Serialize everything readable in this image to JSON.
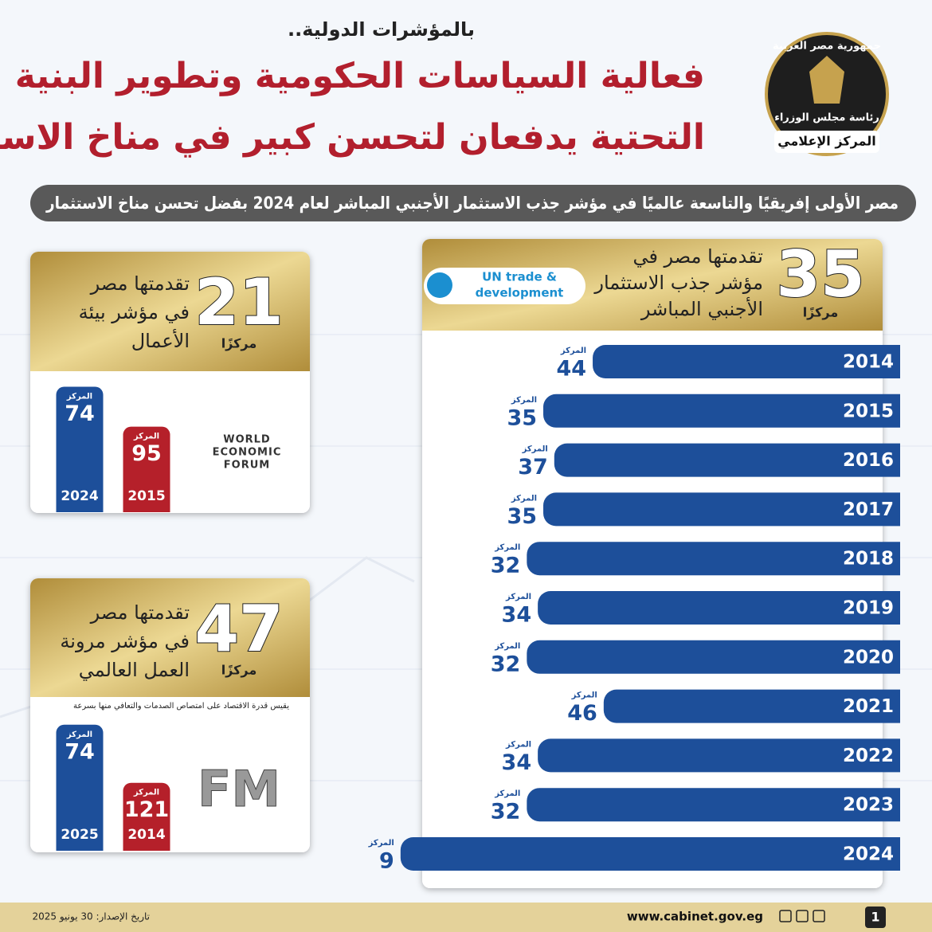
{
  "header": {
    "kicker": "بالمؤشرات الدولية..",
    "title_lines": [
      "فعالية السياسات الحكومية وتطوير البنية",
      "التحتية يدفعان لتحسن كبير في مناخ الاستثمار"
    ],
    "logo": {
      "top": "جمهورية مصر العربية",
      "middle": "رئاسة مجلس الوزراء",
      "bottom": "المركز الإعلامي"
    },
    "banner": "مصر الأولى إفريقيًا والتاسعة عالميًا في مؤشر جذب الاستثمار الأجنبي المباشر لعام 2024 بفضل تحسن مناخ الاستثمار"
  },
  "chart_data": [
    {
      "type": "bar",
      "orientation": "horizontal",
      "rank": 35,
      "rank_unit": "مركزًا",
      "description": [
        "تقدمتها مصر في",
        "مؤشر جذب الاستثمار",
        "الأجنبي المباشر"
      ],
      "source": [
        "UN trade &",
        "development"
      ],
      "value_prefix": "المركز",
      "categories": [
        "2014",
        "2015",
        "2016",
        "2017",
        "2018",
        "2019",
        "2020",
        "2021",
        "2022",
        "2023",
        "2024"
      ],
      "values": [
        44,
        35,
        37,
        35,
        32,
        34,
        32,
        46,
        34,
        32,
        9
      ],
      "color": "#1d4f9a",
      "xlim": [
        100,
        0
      ]
    },
    {
      "type": "bar",
      "orientation": "vertical",
      "rank": 21,
      "rank_unit": "مركزًا",
      "description": [
        "تقدمتها مصر",
        "في مؤشر بيئة",
        "الأعمال"
      ],
      "source": [
        "WORLD",
        "ECONOMIC",
        "FORUM"
      ],
      "value_prefix": "المركز",
      "categories": [
        "2024",
        "2015"
      ],
      "values": [
        74,
        95
      ],
      "colors": [
        "#1d4f9a",
        "#b5202a"
      ],
      "ylim": [
        140,
        0
      ]
    },
    {
      "type": "bar",
      "orientation": "vertical",
      "rank": 47,
      "rank_unit": "مركزًا",
      "description": [
        "تقدمتها مصر",
        "في مؤشر مرونة",
        "العمل العالمي"
      ],
      "note": "يقيس قدرة الاقتصاد على امتصاص الصدمات والتعافي منها بسرعة",
      "source": [
        "FM"
      ],
      "value_prefix": "المركز",
      "categories": [
        "2025",
        "2014"
      ],
      "values": [
        74,
        121
      ],
      "colors": [
        "#1d4f9a",
        "#b5202a"
      ],
      "ylim": [
        176,
        0
      ]
    }
  ],
  "footer": {
    "website": "www.cabinet.gov.eg",
    "date": "تاريخ الإصدار: 30 يونيو 2025",
    "page": "1"
  }
}
